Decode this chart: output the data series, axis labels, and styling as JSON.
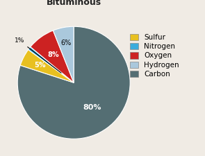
{
  "title": "Bituminous",
  "labels": [
    "Carbon",
    "Sulfur",
    "Nitrogen",
    "Oxygen",
    "Hydrogen"
  ],
  "values": [
    80,
    5,
    1,
    8,
    6
  ],
  "colors": [
    "#546e73",
    "#e8c020",
    "#3aacdc",
    "#cc2222",
    "#aac8dc"
  ],
  "legend_order": [
    "Sulfur",
    "Nitrogen",
    "Oxygen",
    "Hydrogen",
    "Carbon"
  ],
  "legend_colors": [
    "#e8c020",
    "#3aacdc",
    "#cc2222",
    "#aac8dc",
    "#546e73"
  ],
  "startangle": 90,
  "background_color": "#f0ebe4",
  "title_fontsize": 9,
  "legend_fontsize": 7.5
}
